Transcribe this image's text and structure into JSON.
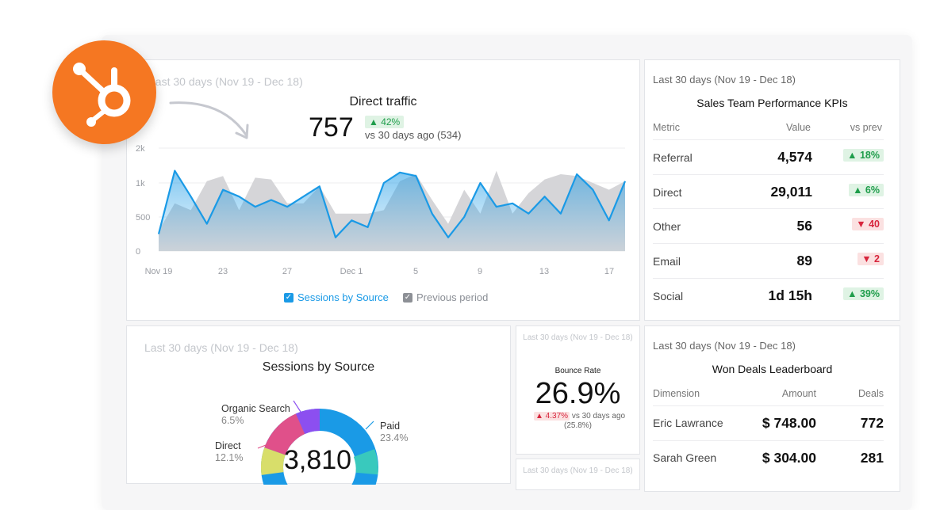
{
  "brand": {
    "logo_icon": "hubspot-sprocket-icon",
    "color": "#f57722"
  },
  "direct_traffic": {
    "period": "Last 30 days (Nov 19 - Dec 18)",
    "title": "Direct traffic",
    "value": "757",
    "delta": "▲ 42%",
    "comparison": "vs 30 days ago (534)",
    "legend_current": "Sessions by Source",
    "legend_previous": "Previous period"
  },
  "chart_data": {
    "type": "area",
    "title": "Direct traffic",
    "x_ticks": [
      "Nov 19",
      "23",
      "27",
      "Dec 1",
      "5",
      "9",
      "13",
      "17"
    ],
    "y_ticks": [
      "0",
      "500",
      "1k",
      "2k"
    ],
    "ylim": [
      0,
      2000
    ],
    "series": [
      {
        "name": "Sessions by Source",
        "color": "#1a9ae6",
        "values": [
          250,
          1350,
          800,
          400,
          900,
          800,
          650,
          750,
          650,
          800,
          950,
          200,
          450,
          350,
          1000,
          1300,
          1200,
          550,
          200,
          500,
          1000,
          650,
          700,
          550,
          800,
          550,
          1250,
          900,
          450,
          1050
        ]
      },
      {
        "name": "Previous period",
        "color": "#c9c9cb",
        "values": [
          300,
          700,
          600,
          1050,
          1200,
          600,
          1150,
          1100,
          700,
          700,
          950,
          550,
          550,
          550,
          600,
          1050,
          1250,
          750,
          400,
          900,
          550,
          1350,
          550,
          850,
          1100,
          1250,
          1200,
          1000,
          900,
          1050
        ]
      }
    ],
    "grid": true
  },
  "kpi": {
    "period": "Last 30 days (Nov 19 - Dec 18)",
    "title": "Sales Team Performance KPIs",
    "headers": {
      "metric": "Metric",
      "value": "Value",
      "prev": "vs prev"
    },
    "rows": [
      {
        "label": "Referral",
        "value": "4,574",
        "change": "▲ 18%",
        "dir": "up"
      },
      {
        "label": "Direct",
        "value": "29,011",
        "change": "▲ 6%",
        "dir": "up"
      },
      {
        "label": "Other",
        "value": "56",
        "change": "▼ 40",
        "dir": "down"
      },
      {
        "label": "Email",
        "value": "89",
        "change": "▼ 2",
        "dir": "down"
      },
      {
        "label": "Social",
        "value": "1d 15h",
        "change": "▲ 39%",
        "dir": "up"
      }
    ]
  },
  "sessions": {
    "period": "Last 30 days (Nov 19 - Dec 18)",
    "title": "Sessions by Source",
    "total": "3,810",
    "segments": [
      {
        "label": "Organic Search",
        "pct": "6.5%",
        "color": "#8c4ff0"
      },
      {
        "label": "Paid",
        "pct": "23.4%",
        "color": "#1a9ae6"
      },
      {
        "label": "Direct",
        "pct": "12.1%",
        "color": "#e0508a"
      }
    ]
  },
  "bounce": {
    "period": "Last 30 days (Nov 19 - Dec 18)",
    "title": "Bounce Rate",
    "value": "26.9%",
    "delta": "▲ 4.37%",
    "comparison": "vs 30 days ago",
    "previous": "(25.8%)"
  },
  "bounce2": {
    "period": "Last 30 days (Nov 19 - Dec 18)"
  },
  "deals": {
    "period": "Last 30 days (Nov 19 - Dec 18)",
    "title": "Won Deals Leaderboard",
    "headers": {
      "dimension": "Dimension",
      "amount": "Amount",
      "deals": "Deals"
    },
    "rows": [
      {
        "name": "Eric Lawrance",
        "amount": "$ 748.00",
        "deals": "772"
      },
      {
        "name": "Sarah Green",
        "amount": "$ 304.00",
        "deals": "281"
      }
    ]
  }
}
